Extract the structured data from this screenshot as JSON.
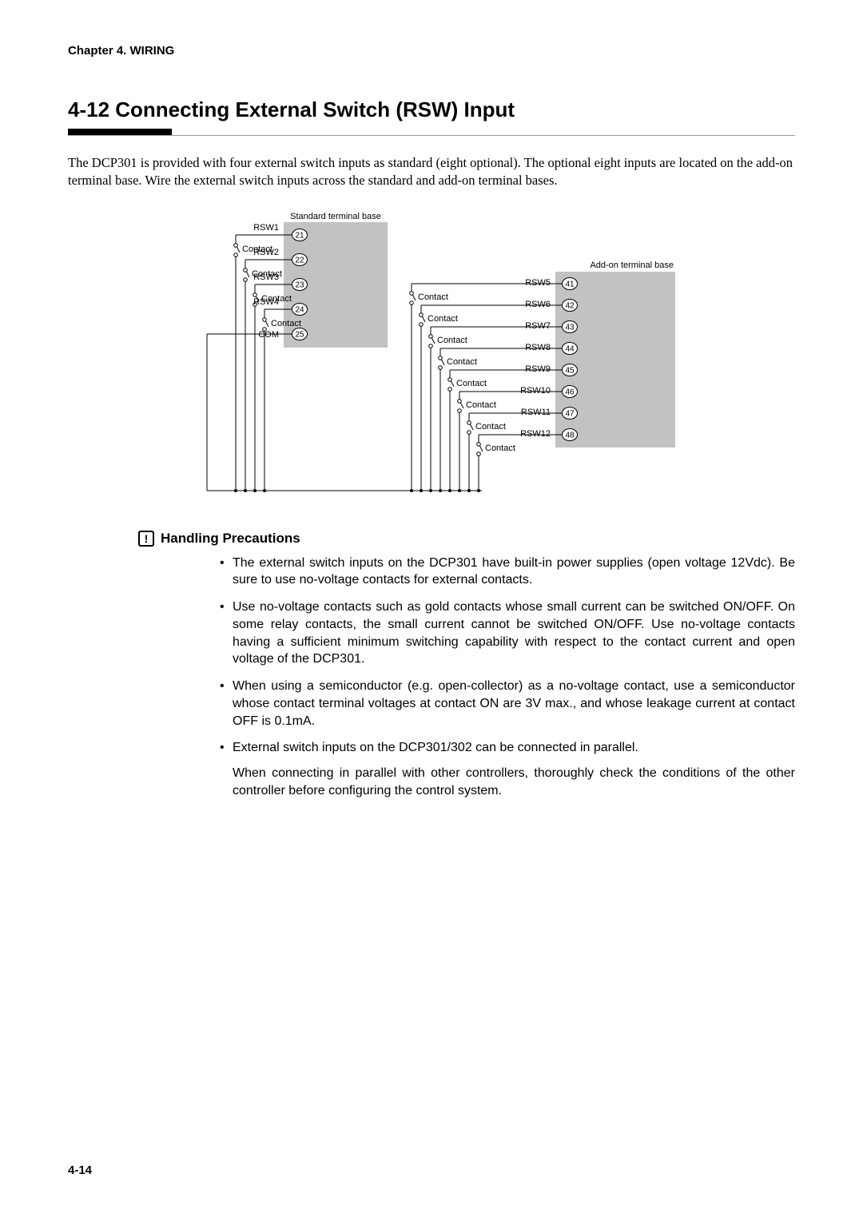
{
  "chapter_header": "Chapter 4. WIRING",
  "section_title": "4-12   Connecting External Switch (RSW) Input",
  "intro": "The DCP301 is provided with four external switch inputs as standard (eight optional). The optional eight inputs are located on the add-on terminal base. Wire the external switch inputs across the standard and add-on terminal bases.",
  "diagram": {
    "standard_label": "Standard terminal base",
    "addon_label": "Add-on terminal base",
    "contact_label": "Contact",
    "com_label": "COM",
    "block_fill": "#c2c2c2",
    "line_color": "#000000",
    "circle_stroke": "#000000",
    "circle_fill": "#ffffff",
    "standard": [
      {
        "name": "RSW1",
        "terminal": "21"
      },
      {
        "name": "RSW2",
        "terminal": "22"
      },
      {
        "name": "RSW3",
        "terminal": "23"
      },
      {
        "name": "RSW4",
        "terminal": "24"
      },
      {
        "name": "",
        "terminal": "25"
      }
    ],
    "addon": [
      {
        "name": "RSW5",
        "terminal": "41"
      },
      {
        "name": "RSW6",
        "terminal": "42"
      },
      {
        "name": "RSW7",
        "terminal": "43"
      },
      {
        "name": "RSW8",
        "terminal": "44"
      },
      {
        "name": "RSW9",
        "terminal": "45"
      },
      {
        "name": "RSW10",
        "terminal": "46"
      },
      {
        "name": "RSW11",
        "terminal": "47"
      },
      {
        "name": "RSW12",
        "terminal": "48"
      }
    ]
  },
  "precautions_heading": "Handling Precautions",
  "precautions": [
    "The external switch inputs on the DCP301 have built-in power supplies (open voltage 12Vdc). Be sure to use no-voltage contacts for external contacts.",
    "Use no-voltage contacts such as gold contacts whose small current can be switched ON/OFF. On some relay contacts, the small current cannot be switched ON/OFF. Use no-voltage contacts having a sufficient minimum switching capability with respect to the contact current and open voltage of the DCP301.",
    "When using a semiconductor (e.g. open-collector) as a no-voltage contact, use a semiconductor whose contact terminal voltages at contact ON are 3V max., and whose leakage current at contact OFF is 0.1mA.",
    "External switch inputs on the DCP301/302 can be connected in parallel."
  ],
  "precaution4_followup": "When connecting in parallel with other controllers, thoroughly check the conditions of the other controller before configuring the control system.",
  "page_number": "4-14"
}
